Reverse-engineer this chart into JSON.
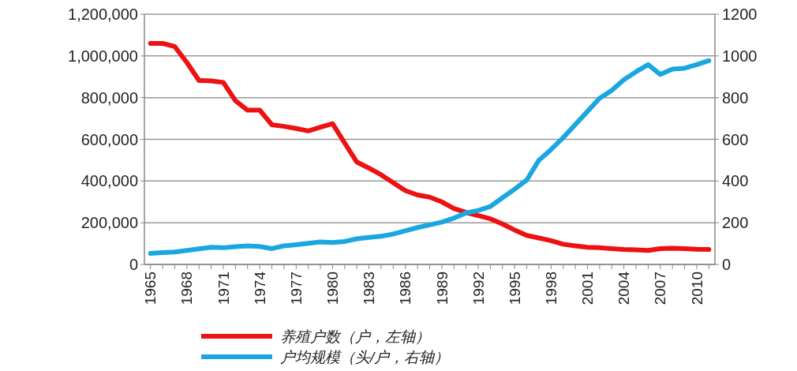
{
  "chart_data": {
    "type": "line",
    "categories": [
      "1965",
      null,
      null,
      "1968",
      null,
      null,
      "1971",
      null,
      null,
      "1974",
      null,
      null,
      "1977",
      null,
      null,
      "1980",
      null,
      null,
      "1983",
      null,
      null,
      "1986",
      null,
      null,
      "1989",
      null,
      null,
      "1992",
      null,
      null,
      "1995",
      null,
      null,
      "1998",
      null,
      null,
      "2001",
      null,
      null,
      "2004",
      null,
      null,
      "2007",
      null,
      null,
      "2010",
      null
    ],
    "series": [
      {
        "name": "养殖户数（户，左轴）",
        "color": "#ee1111",
        "values": [
          1060000,
          1060000,
          1045000,
          968000,
          882000,
          880000,
          873000,
          785000,
          740000,
          740000,
          670000,
          662000,
          652000,
          640000,
          658000,
          675000,
          582000,
          491000,
          462000,
          430000,
          392000,
          354000,
          333000,
          323000,
          300000,
          268000,
          249000,
          234000,
          219000,
          194000,
          165000,
          139000,
          127000,
          114000,
          97000,
          89000,
          82000,
          80000,
          76000,
          72000,
          70000,
          67000,
          76000,
          78000,
          76000,
          73000,
          72000
        ]
      },
      {
        "name": "户均规模（头/户，右轴）",
        "color": "#1aa7e0",
        "axis": "y2",
        "values": [
          53,
          57,
          60,
          67,
          75,
          82,
          80,
          85,
          89,
          86,
          76,
          89,
          95,
          101,
          108,
          105,
          110,
          123,
          130,
          135,
          146,
          161,
          177,
          190,
          203,
          222,
          247,
          259,
          278,
          320,
          361,
          405,
          500,
          551,
          608,
          671,
          734,
          797,
          835,
          886,
          924,
          958,
          911,
          937,
          941,
          958,
          977
        ]
      }
    ],
    "ylim": [
      0,
      1200000
    ],
    "yticks": [
      {
        "value": 0,
        "label": "0"
      },
      {
        "value": 200000,
        "label": "200,000"
      },
      {
        "value": 400000,
        "label": "400,000"
      },
      {
        "value": 600000,
        "label": "600,000"
      },
      {
        "value": 800000,
        "label": "800,000"
      },
      {
        "value": 1000000,
        "label": "1,000,000"
      },
      {
        "value": 1200000,
        "label": "1,200,000"
      }
    ],
    "y2lim": [
      0,
      1200
    ],
    "y2ticks": [
      0,
      200,
      400,
      600,
      800,
      1000,
      1200
    ],
    "grid": "y",
    "legend": "bottom",
    "line_style": "solid",
    "marker": "none"
  }
}
